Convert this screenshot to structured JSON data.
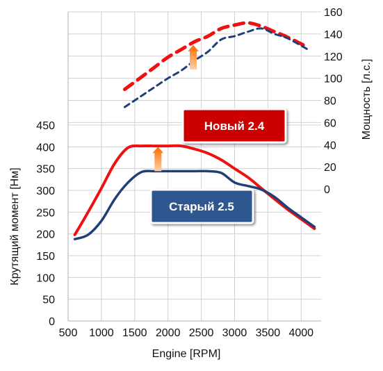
{
  "chart_data": {
    "type": "line",
    "xlabel": "Engine [RPM]",
    "ylabel_left": "Крутящий момент  [Нм]",
    "ylabel_right": "Мощность [л.с.]",
    "x_ticks": [
      500,
      1000,
      1500,
      2000,
      2500,
      3000,
      3500,
      4000
    ],
    "y_left_ticks": [
      0,
      50,
      100,
      150,
      200,
      250,
      300,
      350,
      400,
      450
    ],
    "y_right_ticks": [
      0,
      20,
      40,
      60,
      80,
      100,
      120,
      140,
      160
    ],
    "xlim": [
      500,
      4300
    ],
    "ylim_left": [
      0,
      450
    ],
    "ylim_right": [
      0,
      160
    ],
    "grid": true,
    "series": [
      {
        "name": "Новый 2.4",
        "kind": "torque",
        "axis": "left",
        "color": "#ee1111",
        "style": "solid",
        "x": [
          600,
          800,
          1000,
          1200,
          1400,
          1600,
          1800,
          2000,
          2200,
          2400,
          2600,
          2800,
          3000,
          3200,
          3400,
          3600,
          3800,
          4000,
          4200
        ],
        "y": [
          198,
          250,
          305,
          362,
          398,
          402,
          402,
          402,
          402,
          395,
          385,
          370,
          350,
          330,
          305,
          280,
          256,
          234,
          212
        ]
      },
      {
        "name": "Старый 2.5",
        "kind": "torque",
        "axis": "left",
        "color": "#1f3f78",
        "style": "solid",
        "x": [
          600,
          800,
          1000,
          1200,
          1400,
          1600,
          1800,
          2000,
          2200,
          2400,
          2600,
          2800,
          3000,
          3200,
          3400,
          3600,
          3800,
          4000,
          4200
        ],
        "y": [
          188,
          198,
          230,
          280,
          318,
          342,
          344,
          344,
          344,
          344,
          344,
          340,
          318,
          310,
          302,
          285,
          260,
          238,
          216
        ]
      },
      {
        "name": "Новый 2.4",
        "kind": "power",
        "axis": "right",
        "color": "#ee1111",
        "style": "dashed",
        "x": [
          1350,
          1600,
          1800,
          2000,
          2200,
          2400,
          2600,
          2800,
          3000,
          3200,
          3400,
          3600,
          3800,
          4100
        ],
        "y": [
          90,
          101,
          110,
          119,
          126,
          133,
          138,
          145,
          148,
          150,
          147,
          142,
          137,
          128
        ]
      },
      {
        "name": "Старый 2.5",
        "kind": "power",
        "axis": "right",
        "color": "#1f3f78",
        "style": "dashed",
        "x": [
          1350,
          1600,
          1800,
          2000,
          2200,
          2400,
          2600,
          2800,
          3000,
          3200,
          3400,
          3600,
          3800,
          4100
        ],
        "y": [
          74,
          84,
          92,
          100,
          107,
          116,
          124,
          135,
          138,
          142,
          145,
          140,
          136,
          126
        ]
      }
    ],
    "callouts": [
      {
        "label": "Новый 2.4",
        "fill": "#cc0000"
      },
      {
        "label": "Старый 2.5",
        "fill": "#2f568f"
      }
    ],
    "arrows": [
      {
        "x": 1850,
        "from_left": 344,
        "to_left": 400,
        "color": "#ff7a1a"
      },
      {
        "x": 2380,
        "from_right": 108,
        "to_right": 130,
        "color": "#ff7a1a"
      }
    ]
  }
}
